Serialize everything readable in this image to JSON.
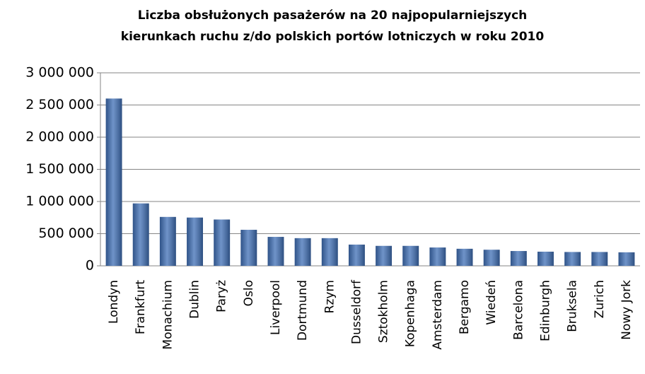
{
  "chart_data": {
    "type": "bar",
    "title": [
      "Liczba obsłużonych pasażerów na 20 najpopularniejszych",
      "kierunkach ruchu z/do polskich portów lotniczych w roku 2010"
    ],
    "categories": [
      "Londyn",
      "Frankfurt",
      "Monachium",
      "Dublin",
      "Paryż",
      "Oslo",
      "Liverpool",
      "Dortmund",
      "Rzym",
      "Dusseldorf",
      "Sztokholm",
      "Kopenhaga",
      "Amsterdam",
      "Bergamo",
      "Wiedeń",
      "Barcelona",
      "Edinburgh",
      "Bruksela",
      "Zurich",
      "Nowy Jork"
    ],
    "values": [
      2600000,
      970000,
      760000,
      750000,
      720000,
      560000,
      450000,
      430000,
      430000,
      330000,
      310000,
      310000,
      285000,
      265000,
      250000,
      230000,
      220000,
      215000,
      215000,
      210000
    ],
    "color": "#3f6fb6",
    "ylim": [
      0,
      3000000
    ],
    "yticks": [
      0,
      {
        "value": 500000,
        "label": "500 000"
      },
      {
        "value": 1000000,
        "label": "1 000 000"
      },
      {
        "value": 1500000,
        "label": "1 500 000"
      },
      {
        "value": 2000000,
        "label": "2 000 000"
      },
      {
        "value": 2500000,
        "label": "2 500 000"
      },
      {
        "value": 3000000,
        "label": "3 000 000"
      }
    ],
    "grid": true
  }
}
